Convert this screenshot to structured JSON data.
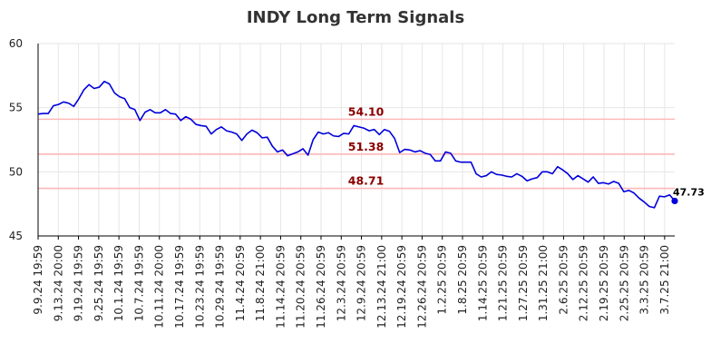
{
  "chart_data": {
    "type": "line",
    "title": "INDY Long Term Signals",
    "xlabel": "",
    "ylabel": "",
    "ylim": [
      45,
      60
    ],
    "yticks": [
      45,
      50,
      55,
      60
    ],
    "grid": true,
    "colors": {
      "line": "#0000dd",
      "threshold_line": "#ffb8b8",
      "threshold_label": "#8b0000",
      "grid": "#e6e6e6",
      "axis": "#000000"
    },
    "xtick_labels": [
      "9.9.24 19:59",
      "9.13.24 20:00",
      "9.19.24 19:59",
      "9.25.24 19:59",
      "10.1.24 19:59",
      "10.7.24 19:59",
      "10.11.24 20:00",
      "10.17.24 19:59",
      "10.23.24 19:59",
      "10.29.24 19:59",
      "11.4.24 20:59",
      "11.8.24 21:00",
      "11.14.24 20:59",
      "11.20.24 20:59",
      "11.26.24 20:59",
      "12.3.24 20:59",
      "12.9.24 20:59",
      "12.13.24 21:00",
      "12.19.24 20:59",
      "12.26.24 20:59",
      "1.2.25 20:59",
      "1.8.25 20:59",
      "1.14.25 20:59",
      "1.21.25 20:59",
      "1.27.25 20:59",
      "1.31.25 21:00",
      "2.6.25 20:59",
      "2.12.25 20:59",
      "2.19.25 20:59",
      "2.25.25 20:59",
      "3.3.25 20:59",
      "3.7.25 21:00"
    ],
    "thresholds": [
      {
        "value": 54.1,
        "label": "54.10"
      },
      {
        "value": 51.38,
        "label": "51.38"
      },
      {
        "value": 48.71,
        "label": "48.71"
      }
    ],
    "last_value_label": "47.73",
    "series": [
      {
        "values": [
          54.5,
          54.55,
          54.55,
          55.15,
          55.25,
          55.45,
          55.35,
          55.1,
          55.7,
          56.4,
          56.8,
          56.5,
          56.6,
          57.05,
          56.85,
          56.15,
          55.85,
          55.7,
          55.0,
          54.85,
          54.0,
          54.65,
          54.85,
          54.6,
          54.6,
          54.85,
          54.55,
          54.5,
          54.0,
          54.3,
          54.1,
          53.7,
          53.6,
          53.55,
          52.95,
          53.3,
          53.5,
          53.2,
          53.1,
          52.95,
          52.45,
          52.95,
          53.25,
          53.05,
          52.65,
          52.7,
          52.0,
          51.55,
          51.7,
          51.25,
          51.4,
          51.55,
          51.8,
          51.3,
          52.5,
          53.1,
          52.95,
          53.05,
          52.8,
          52.75,
          53.0,
          52.95,
          53.6,
          53.5,
          53.4,
          53.2,
          53.3,
          52.9,
          53.3,
          53.15,
          52.6,
          51.5,
          51.75,
          51.7,
          51.55,
          51.65,
          51.45,
          51.35,
          50.85,
          50.85,
          51.55,
          51.45,
          50.85,
          50.75,
          50.75,
          50.75,
          49.85,
          49.6,
          49.7,
          50.0,
          49.8,
          49.75,
          49.65,
          49.6,
          49.85,
          49.65,
          49.3,
          49.45,
          49.55,
          50.0,
          50.0,
          49.85,
          50.4,
          50.15,
          49.85,
          49.4,
          49.7,
          49.45,
          49.2,
          49.6,
          49.1,
          49.15,
          49.05,
          49.25,
          49.1,
          48.45,
          48.55,
          48.35,
          47.95,
          47.65,
          47.3,
          47.2,
          48.1,
          48.05,
          48.2,
          47.73
        ]
      }
    ]
  }
}
